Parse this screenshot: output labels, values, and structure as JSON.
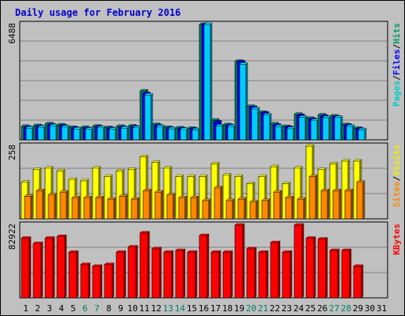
{
  "chart_data": [
    {
      "type": "bar",
      "title": "Daily usage for February 2016",
      "ymax_label": "6488",
      "legend": [
        {
          "text": "Pages",
          "color": "#00CCCC"
        },
        {
          "text": "/",
          "color": "#000000"
        },
        {
          "text": "Files",
          "color": "#0000FF"
        },
        {
          "text": "/",
          "color": "#000000"
        },
        {
          "text": "Hits",
          "color": "#009966"
        }
      ],
      "series": [
        {
          "name": "Hits",
          "color": "#00805C",
          "values": [
            760,
            800,
            900,
            840,
            700,
            700,
            770,
            690,
            760,
            780,
            2750,
            860,
            700,
            670,
            650,
            6488,
            1110,
            850,
            4420,
            1880,
            1550,
            900,
            750,
            1440,
            1210,
            1400,
            1340,
            850,
            650
          ]
        },
        {
          "name": "Files",
          "color": "#0000FF",
          "values": [
            700,
            750,
            840,
            780,
            650,
            640,
            720,
            640,
            700,
            720,
            2600,
            800,
            650,
            620,
            600,
            6488,
            1000,
            800,
            4380,
            1820,
            1500,
            820,
            700,
            1370,
            1150,
            1320,
            1290,
            810,
            600
          ]
        },
        {
          "name": "Pages",
          "color": "#00CCFF",
          "values": [
            660,
            710,
            790,
            730,
            610,
            600,
            680,
            600,
            660,
            680,
            2520,
            750,
            620,
            590,
            560,
            6488,
            780,
            750,
            4250,
            1740,
            1400,
            750,
            630,
            1270,
            1080,
            1250,
            1260,
            760,
            560
          ]
        }
      ]
    },
    {
      "type": "bar",
      "ymax_label": "258",
      "legend": [
        {
          "text": "Sites",
          "color": "#FF8800"
        },
        {
          "text": "/",
          "color": "#000000"
        },
        {
          "text": "Visits",
          "color": "#EEEE00"
        }
      ],
      "series": [
        {
          "name": "Visits",
          "color": "#FFFF00",
          "values": [
            130,
            175,
            180,
            170,
            140,
            135,
            180,
            150,
            170,
            175,
            220,
            200,
            180,
            150,
            150,
            150,
            195,
            155,
            150,
            125,
            150,
            185,
            125,
            180,
            258,
            175,
            195,
            205,
            205
          ]
        },
        {
          "name": "Sites",
          "color": "#FF8800",
          "values": [
            80,
            100,
            85,
            95,
            75,
            75,
            75,
            70,
            80,
            70,
            100,
            95,
            85,
            75,
            75,
            65,
            110,
            65,
            70,
            60,
            65,
            95,
            75,
            70,
            150,
            100,
            100,
            100,
            130
          ]
        }
      ]
    },
    {
      "type": "bar",
      "ymax_label": "82922",
      "legend": [
        {
          "text": "KBytes",
          "color": "#FF0000"
        }
      ],
      "series": [
        {
          "name": "KBytes",
          "color": "#FF0000",
          "values": [
            68000,
            62000,
            68000,
            70000,
            52000,
            38000,
            36000,
            38000,
            52000,
            58000,
            74000,
            56000,
            52000,
            54000,
            52000,
            71000,
            52000,
            52000,
            82922,
            56000,
            52000,
            63000,
            52000,
            82922,
            68000,
            67000,
            54000,
            54000,
            36000
          ]
        }
      ]
    }
  ],
  "days": [
    {
      "label": "1",
      "weekend": false
    },
    {
      "label": "2",
      "weekend": false
    },
    {
      "label": "3",
      "weekend": false
    },
    {
      "label": "4",
      "weekend": false
    },
    {
      "label": "5",
      "weekend": false
    },
    {
      "label": "6",
      "weekend": true
    },
    {
      "label": "7",
      "weekend": true
    },
    {
      "label": "8",
      "weekend": false
    },
    {
      "label": "9",
      "weekend": false
    },
    {
      "label": "10",
      "weekend": false
    },
    {
      "label": "11",
      "weekend": false
    },
    {
      "label": "12",
      "weekend": false
    },
    {
      "label": "13",
      "weekend": true
    },
    {
      "label": "14",
      "weekend": true
    },
    {
      "label": "15",
      "weekend": false
    },
    {
      "label": "16",
      "weekend": false
    },
    {
      "label": "17",
      "weekend": false
    },
    {
      "label": "18",
      "weekend": false
    },
    {
      "label": "19",
      "weekend": false
    },
    {
      "label": "20",
      "weekend": true
    },
    {
      "label": "21",
      "weekend": true
    },
    {
      "label": "22",
      "weekend": false
    },
    {
      "label": "23",
      "weekend": false
    },
    {
      "label": "24",
      "weekend": false
    },
    {
      "label": "25",
      "weekend": false
    },
    {
      "label": "26",
      "weekend": false
    },
    {
      "label": "27",
      "weekend": true
    },
    {
      "label": "28",
      "weekend": true
    },
    {
      "label": "29",
      "weekend": false
    },
    {
      "label": "30",
      "weekend": false
    },
    {
      "label": "31",
      "weekend": false
    }
  ],
  "colors": {
    "background": "#C0C0C0",
    "title": "#0000CC",
    "weekday_label": "#000000",
    "weekend_label": "#00805C",
    "gridline": "#808080"
  }
}
